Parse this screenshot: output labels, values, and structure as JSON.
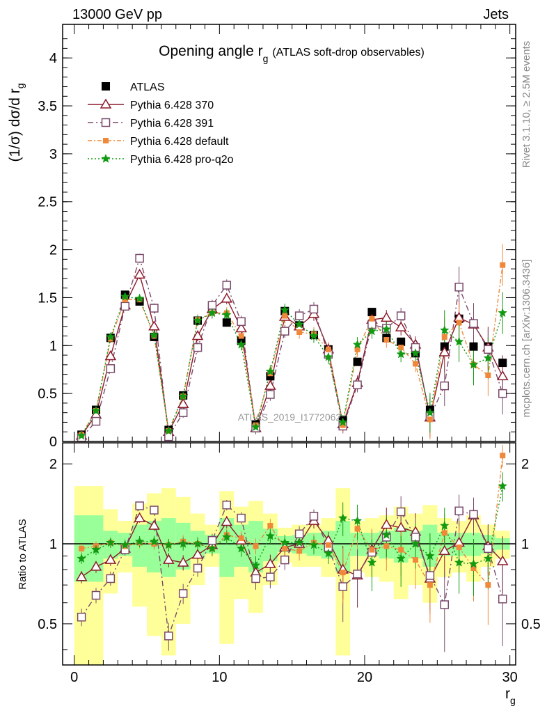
{
  "chart_data": [
    {
      "type": "scatter",
      "title": "Opening angle r",
      "title_sub": "g",
      "title_suffix": "(ATLAS soft-drop observables)",
      "corner_left": "13000 GeV pp",
      "corner_right": "Jets",
      "ylabel": "(1/σ) dσ/d r",
      "ylabel_sub": "g",
      "watermark": "ATLAS_2019_I1772062",
      "side_label_1": "Rivet 3.1.10, ≥ 2.5M events",
      "side_label_2": "mcplots.cern.ch [arXiv:1306.3436]",
      "xlim": [
        -0.8,
        30.4
      ],
      "ylim": [
        0,
        4.35
      ],
      "y_ticks": [
        "0",
        "0.5",
        "1",
        "1.5",
        "2",
        "2.5",
        "3",
        "3.5",
        "4"
      ],
      "x": [
        0.5,
        1.5,
        2.5,
        3.5,
        4.5,
        5.5,
        6.5,
        7.5,
        8.5,
        9.5,
        10.5,
        11.5,
        12.5,
        13.5,
        14.5,
        15.5,
        16.5,
        17.5,
        18.5,
        19.5,
        20.5,
        21.5,
        22.5,
        23.5,
        24.5,
        25.5,
        26.5,
        27.5,
        28.5,
        29.5
      ],
      "series": [
        {
          "name": "ATLAS",
          "color": "#000000",
          "marker": "square-filled",
          "values": [
            0.07,
            0.33,
            1.08,
            1.53,
            1.46,
            1.09,
            0.12,
            0.48,
            1.26,
            1.39,
            1.24,
            1.05,
            0.18,
            0.68,
            1.36,
            1.21,
            1.11,
            0.96,
            0.22,
            0.83,
            1.35,
            1.08,
            1.04,
            0.92,
            0.33,
            0.99,
            1.28,
            0.99,
            0.99,
            0.82
          ]
        },
        {
          "name": "Pythia 6.428 370",
          "color": "#8b1a2b",
          "marker": "triangle-open",
          "dash": "",
          "values": [
            0.06,
            0.28,
            0.89,
            1.42,
            1.74,
            1.2,
            0.1,
            0.39,
            1.1,
            1.38,
            1.49,
            1.18,
            0.14,
            0.58,
            1.3,
            1.2,
            1.33,
            0.96,
            0.18,
            0.61,
            1.27,
            1.29,
            1.19,
            1.01,
            0.25,
            0.93,
            1.29,
            1.22,
            0.98,
            0.68
          ]
        },
        {
          "name": "Pythia 6.428 391",
          "color": "#7a4a6a",
          "marker": "square-open",
          "dash": "8 4 2 4",
          "values": [
            0.04,
            0.21,
            0.76,
            1.41,
            1.91,
            1.39,
            0.05,
            0.3,
            0.98,
            1.42,
            1.63,
            1.25,
            0.14,
            0.49,
            1.15,
            1.31,
            1.38,
            0.91,
            0.16,
            0.59,
            1.22,
            1.18,
            1.31,
            0.98,
            0.26,
            0.58,
            1.61,
            1.23,
            0.96,
            0.5
          ]
        },
        {
          "name": "Pythia 6.428 default",
          "color": "#f0883a",
          "marker": "square-filled-small",
          "dash": "6 3 2 3",
          "values": [
            0.07,
            0.32,
            1.07,
            1.48,
            1.48,
            1.1,
            0.11,
            0.47,
            1.27,
            1.34,
            1.34,
            1.1,
            0.17,
            0.71,
            1.31,
            1.14,
            1.12,
            0.96,
            0.17,
            0.96,
            1.28,
            1.06,
            0.98,
            0.81,
            0.23,
            1.09,
            1.24,
            0.8,
            0.69,
            1.84
          ]
        },
        {
          "name": "Pythia 6.428 pro-q2o",
          "color": "#119911",
          "marker": "star",
          "dash": "2 3",
          "values": [
            0.06,
            0.32,
            1.09,
            1.51,
            1.49,
            1.11,
            0.11,
            0.47,
            1.26,
            1.34,
            1.32,
            1.01,
            0.15,
            0.73,
            1.37,
            1.22,
            1.1,
            0.88,
            0.2,
            1.01,
            1.15,
            1.17,
            0.91,
            0.92,
            0.3,
            1.16,
            1.04,
            0.8,
            0.87,
            1.34
          ]
        }
      ]
    },
    {
      "type": "scatter",
      "ylabel": "Ratio to ATLAS",
      "xlabel": "r",
      "xlabel_sub": "g",
      "yscale": "log",
      "ylim": [
        0.35,
        2.4
      ],
      "xlim": [
        -0.8,
        30.4
      ],
      "x_ticks": [
        "0",
        "10",
        "20",
        "30"
      ],
      "y_ticks": [
        "0.5",
        "1",
        "2"
      ],
      "x": [
        0.5,
        1.5,
        2.5,
        3.5,
        4.5,
        5.5,
        6.5,
        7.5,
        8.5,
        9.5,
        10.5,
        11.5,
        12.5,
        13.5,
        14.5,
        15.5,
        16.5,
        17.5,
        18.5,
        19.5,
        20.5,
        21.5,
        22.5,
        23.5,
        24.5,
        25.5,
        26.5,
        27.5,
        28.5,
        29.5
      ],
      "band_green_halfwidth": [
        0.28,
        0.28,
        0.12,
        0.1,
        0.18,
        0.22,
        0.25,
        0.2,
        0.12,
        0.08,
        0.25,
        0.18,
        0.22,
        0.14,
        0.07,
        0.08,
        0.1,
        0.12,
        0.22,
        0.1,
        0.1,
        0.12,
        0.15,
        0.12,
        0.18,
        0.1,
        0.1,
        0.1,
        0.08,
        0.05
      ],
      "band_yellow_halfwidth": [
        0.65,
        0.65,
        0.35,
        0.22,
        0.42,
        0.55,
        0.62,
        0.5,
        0.3,
        0.18,
        0.58,
        0.38,
        0.45,
        0.3,
        0.15,
        0.18,
        0.18,
        0.25,
        0.62,
        0.22,
        0.25,
        0.28,
        0.38,
        0.3,
        0.4,
        0.25,
        0.22,
        0.28,
        0.18,
        0.12
      ],
      "series": [
        {
          "name": "Pythia 6.428 370",
          "values": [
            0.75,
            0.82,
            0.87,
            0.96,
            1.25,
            1.17,
            0.87,
            0.85,
            0.91,
            0.99,
            1.21,
            1.03,
            0.78,
            0.84,
            0.97,
            1.0,
            1.22,
            1.03,
            0.8,
            0.76,
            0.95,
            1.18,
            1.15,
            1.11,
            0.74,
            0.94,
            1.01,
            1.28,
            0.98,
            0.86
          ]
        },
        {
          "name": "Pythia 6.428 391",
          "values": [
            0.53,
            0.64,
            0.74,
            0.95,
            1.39,
            1.34,
            0.45,
            0.65,
            0.81,
            1.03,
            1.4,
            1.25,
            0.74,
            0.75,
            0.87,
            1.09,
            1.27,
            0.97,
            0.69,
            0.77,
            0.93,
            1.06,
            1.32,
            1.06,
            0.76,
            0.59,
            1.33,
            1.29,
            0.96,
            0.62
          ]
        },
        {
          "name": "Pythia 6.428 default",
          "values": [
            0.96,
            0.98,
            1.01,
            0.98,
            1.01,
            1.0,
            0.99,
            1.02,
            1.0,
            0.96,
            1.08,
            1.05,
            0.98,
            1.17,
            0.96,
            0.94,
            1.01,
            0.99,
            0.78,
            1.14,
            0.95,
            0.98,
            0.95,
            0.87,
            0.7,
            1.1,
            0.97,
            0.81,
            0.7,
            2.15
          ]
        },
        {
          "name": "Pythia 6.428 pro-q2o",
          "values": [
            0.88,
            0.95,
            1.01,
            0.99,
            1.02,
            1.02,
            0.99,
            1.0,
            1.0,
            0.96,
            1.06,
            0.96,
            0.83,
            1.07,
            1.01,
            1.01,
            0.99,
            0.92,
            1.25,
            1.22,
            0.85,
            1.08,
            0.88,
            1.0,
            0.9,
            1.17,
            0.85,
            0.84,
            0.88,
            1.65
          ]
        }
      ]
    }
  ]
}
